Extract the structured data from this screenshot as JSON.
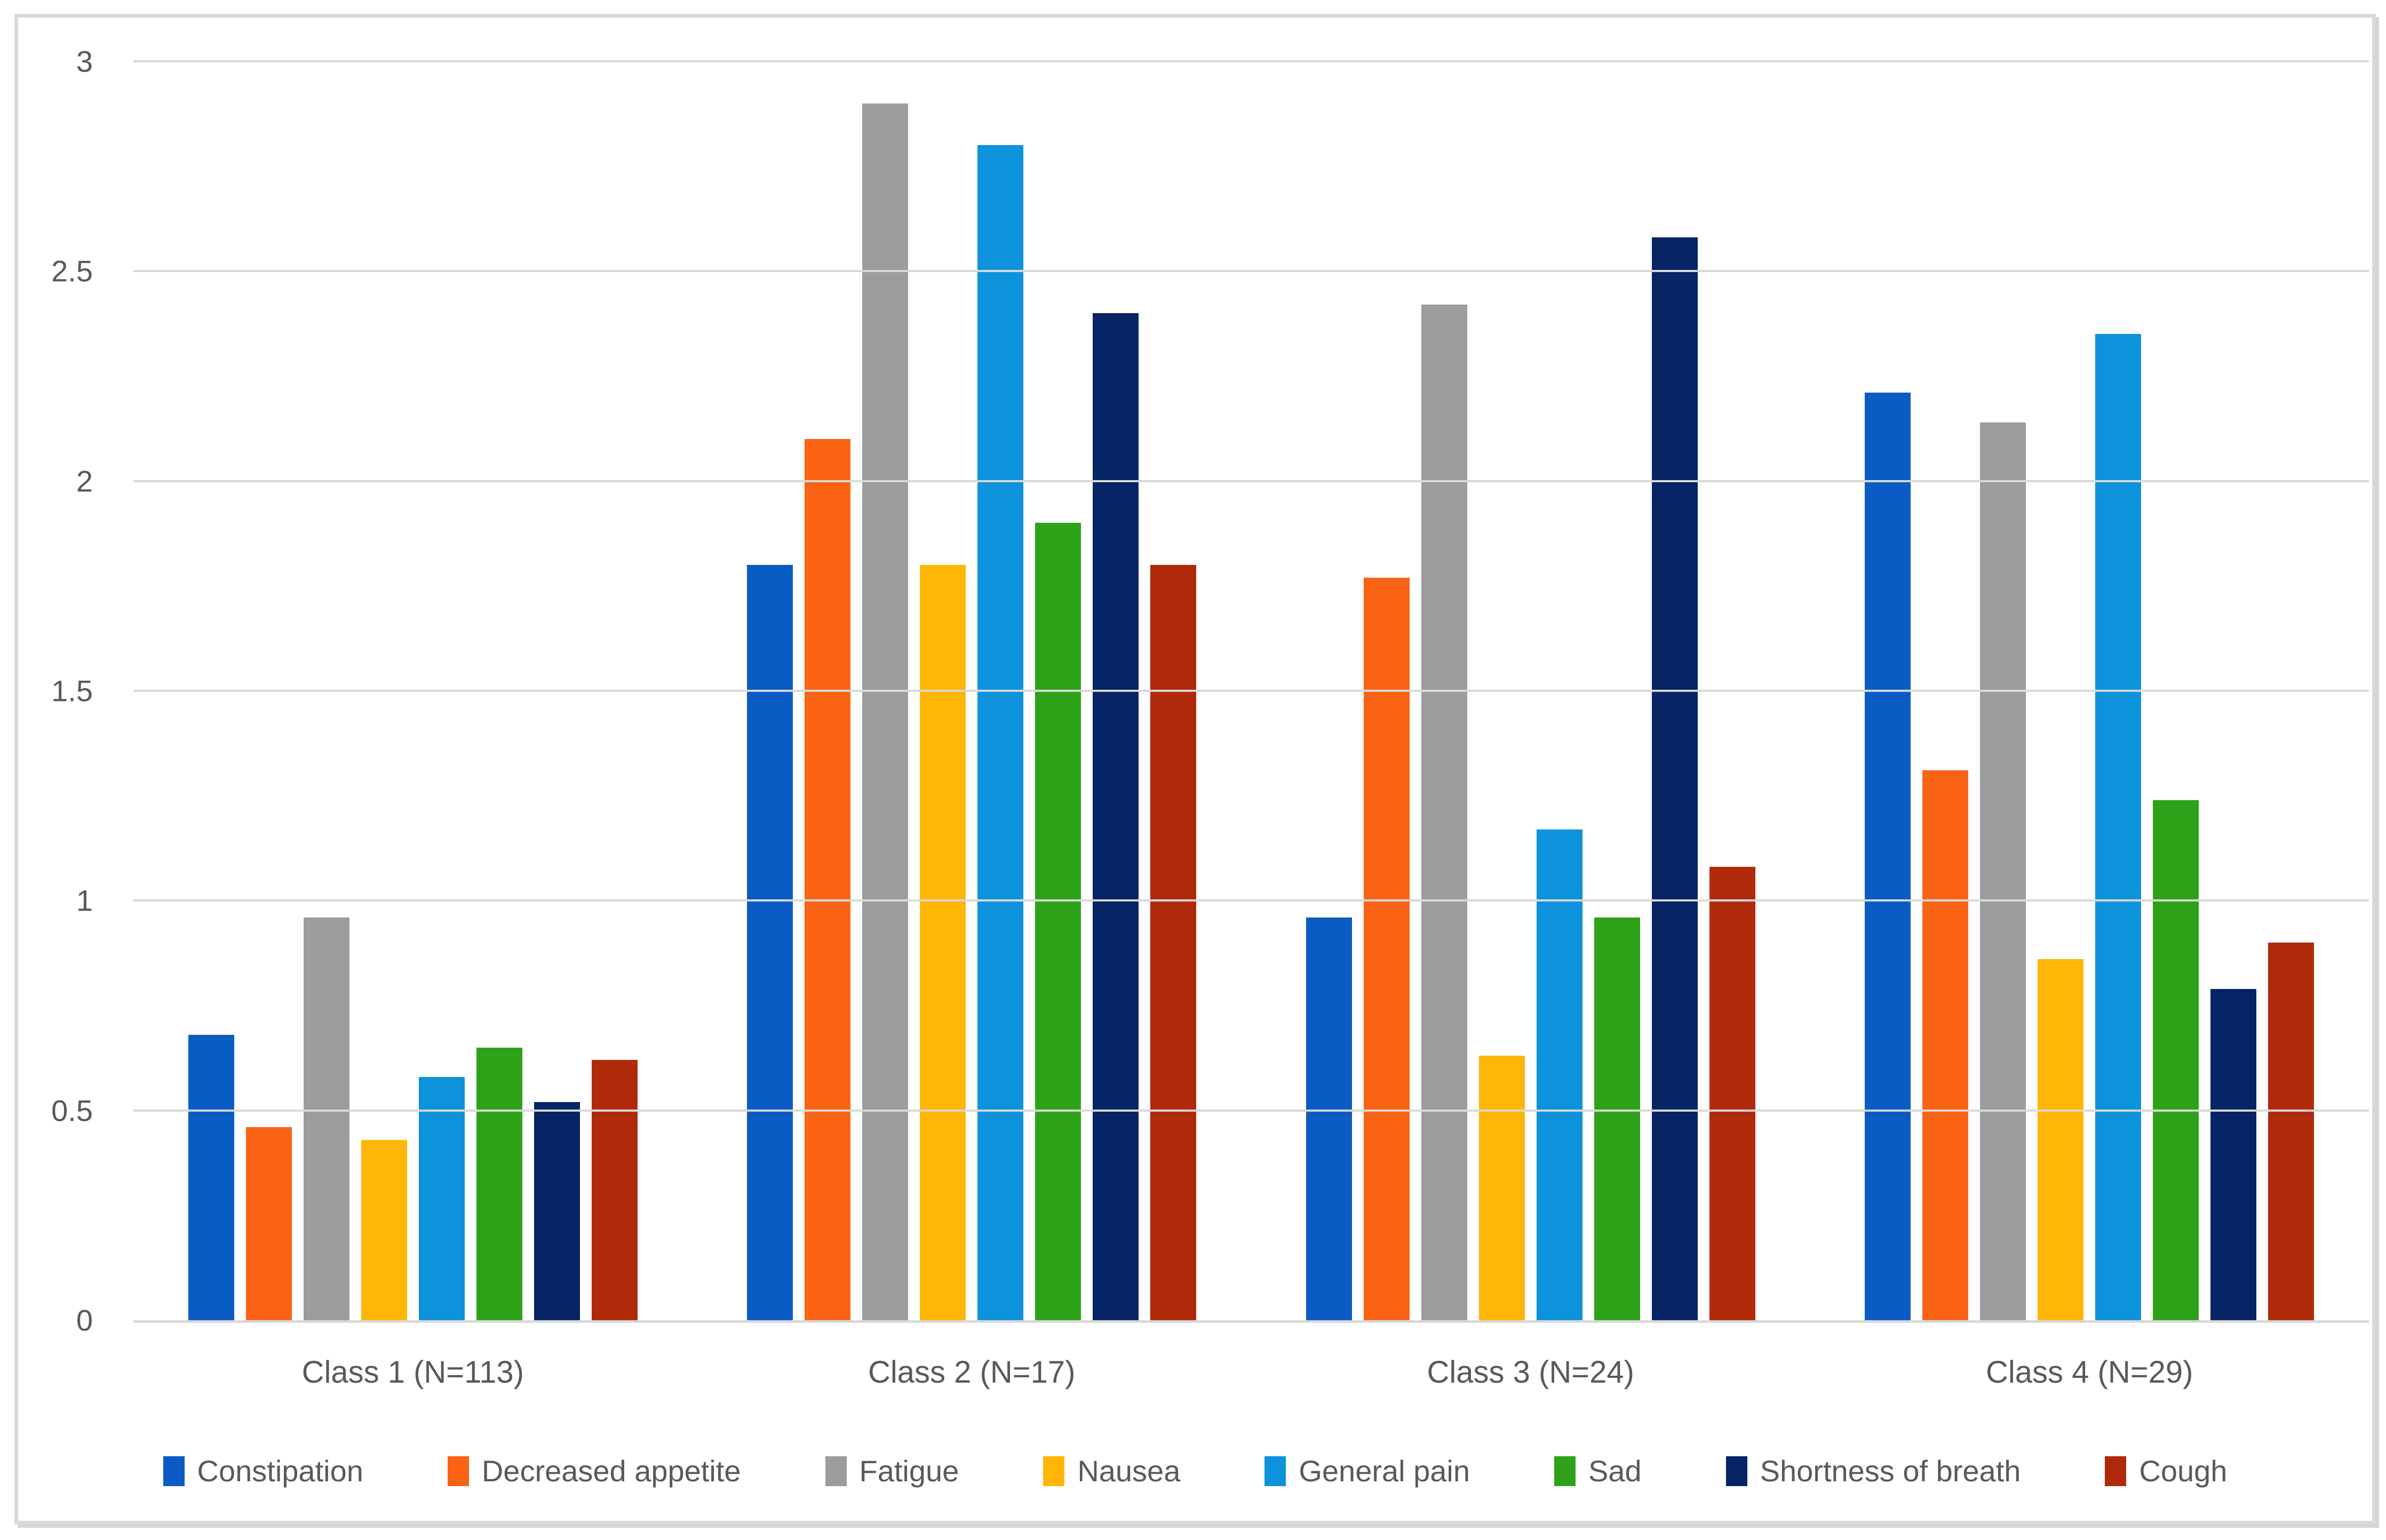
{
  "chart_data": {
    "type": "bar",
    "title": "",
    "xlabel": "",
    "ylabel": "",
    "categories": [
      "Class 1 (N=113)",
      "Class 2 (N=17)",
      "Class 3 (N=24)",
      "Class 4 (N=29)"
    ],
    "series": [
      {
        "name": "Constipation",
        "color": "#0B5BC4",
        "values": [
          0.68,
          1.8,
          0.96,
          2.21
        ]
      },
      {
        "name": "Decreased appetite",
        "color": "#FA6214",
        "values": [
          0.46,
          2.1,
          1.77,
          1.31
        ]
      },
      {
        "name": "Fatigue",
        "color": "#9C9C9C",
        "values": [
          0.96,
          2.9,
          2.42,
          2.14
        ]
      },
      {
        "name": "Nausea",
        "color": "#FFB606",
        "values": [
          0.43,
          1.8,
          0.63,
          0.86
        ]
      },
      {
        "name": "General pain",
        "color": "#0D93DB",
        "values": [
          0.58,
          2.8,
          1.17,
          2.35
        ]
      },
      {
        "name": "Sad",
        "color": "#2DA219",
        "values": [
          0.65,
          1.9,
          0.96,
          1.24
        ]
      },
      {
        "name": "Shortness of breath",
        "color": "#072465",
        "values": [
          0.52,
          2.4,
          2.58,
          0.79
        ]
      },
      {
        "name": "Cough",
        "color": "#B0290B",
        "values": [
          0.62,
          1.8,
          1.08,
          0.9
        ]
      }
    ],
    "y_axis": {
      "min": 0,
      "max": 3,
      "step": 0.5,
      "tick_labels": [
        "0",
        "0.5",
        "1",
        "1.5",
        "2",
        "2.5",
        "3"
      ]
    },
    "grid": true,
    "legend_position": "bottom",
    "colors": {
      "gridline": "#D9D9D9",
      "axis_line": "#D9D9D9",
      "tick_text": "#595959",
      "frame_border": "#D9D9D9",
      "background": "#FFFFFF"
    }
  }
}
